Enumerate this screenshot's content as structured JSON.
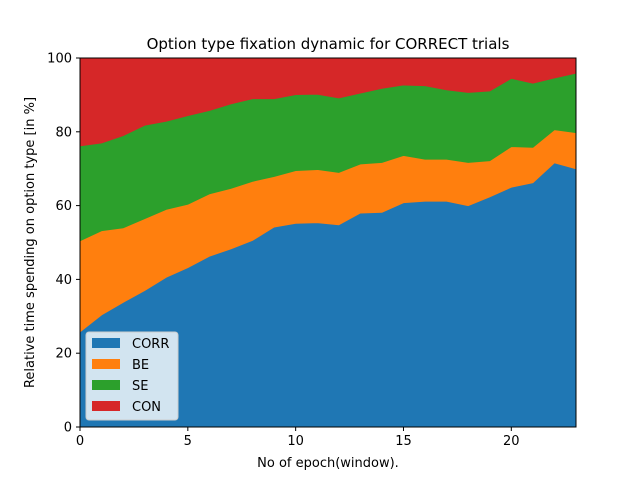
{
  "chart_data": {
    "type": "area",
    "stacked": true,
    "title": "Option type fixation dynamic for CORRECT trials",
    "xlabel": "No of epoch(window).",
    "ylabel": "Relative time spending on option type [in %]",
    "xlim": [
      0,
      23
    ],
    "ylim": [
      0,
      100
    ],
    "xticks": [
      0,
      5,
      10,
      15,
      20
    ],
    "yticks": [
      0,
      20,
      40,
      60,
      80,
      100
    ],
    "grid": false,
    "legend_position": "lower-left",
    "x": [
      0,
      1,
      2,
      3,
      4,
      5,
      6,
      7,
      8,
      9,
      10,
      11,
      12,
      13,
      14,
      15,
      16,
      17,
      18,
      19,
      20,
      21,
      22,
      23
    ],
    "series": [
      {
        "name": "CORR",
        "color": "#1f77b4",
        "values": [
          25.8,
          30.4,
          33.8,
          37.0,
          40.6,
          43.2,
          46.3,
          48.3,
          50.6,
          54.2,
          55.2,
          55.4,
          54.8,
          58.0,
          58.2,
          60.8,
          61.2,
          61.2,
          60.0,
          62.4,
          65.0,
          66.2,
          71.6,
          70.0
        ]
      },
      {
        "name": "BE",
        "color": "#ff7f0e",
        "values": [
          24.7,
          22.8,
          20.2,
          19.5,
          18.4,
          17.2,
          16.9,
          16.4,
          16.0,
          13.7,
          14.3,
          14.4,
          14.2,
          13.3,
          13.5,
          12.8,
          11.4,
          11.4,
          11.7,
          9.8,
          11.0,
          9.6,
          9.0,
          9.8
        ]
      },
      {
        "name": "SE",
        "color": "#2ca02c",
        "values": [
          25.7,
          23.8,
          25.0,
          25.3,
          23.9,
          24.0,
          22.6,
          22.9,
          22.4,
          21.1,
          20.6,
          20.4,
          20.2,
          19.2,
          20.1,
          19.1,
          19.9,
          18.8,
          19.0,
          18.9,
          18.5,
          17.4,
          14.0,
          16.1
        ]
      },
      {
        "name": "CON",
        "color": "#d62728",
        "values": [
          23.8,
          23.0,
          21.0,
          18.2,
          17.1,
          15.6,
          14.2,
          12.4,
          11.0,
          11.0,
          9.9,
          9.8,
          10.8,
          9.5,
          8.2,
          7.3,
          7.5,
          8.6,
          9.3,
          8.9,
          5.5,
          6.8,
          5.4,
          4.1
        ]
      }
    ]
  }
}
